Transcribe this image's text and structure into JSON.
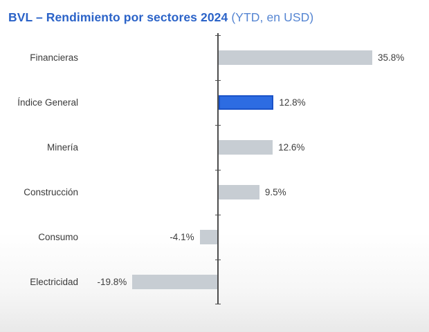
{
  "title": {
    "main": "BVL – Rendimiento por sectores 2024",
    "suffix": "(YTD, en USD)"
  },
  "colors": {
    "title_main": "#2b63c8",
    "title_suffix": "#5585d2",
    "bar_default": "#c7cdd3",
    "bar_highlight_fill": "#2d6ce2",
    "bar_highlight_border": "#1a52c8",
    "axis": "#4d4d4d",
    "category_label_text": "#3a3a3a",
    "value_label_text": "#3d3d3d"
  },
  "chart_data": {
    "type": "bar",
    "orientation": "horizontal",
    "title": "BVL – Rendimiento por sectores 2024 (YTD, en USD)",
    "xlabel": "",
    "ylabel": "",
    "categories": [
      "Financieras",
      "Índice General",
      "Minería",
      "Construcción",
      "Consumo",
      "Electricidad"
    ],
    "values": [
      35.8,
      12.8,
      12.6,
      9.5,
      -4.1,
      -19.8
    ],
    "value_labels": [
      "35.8%",
      "12.8%",
      "12.6%",
      "9.5%",
      "-4.1%",
      "-19.8%"
    ],
    "value_suffix": "%",
    "highlight_index": 1,
    "highlight_category": "Índice General",
    "xlim": [
      -25,
      40
    ],
    "grid": false,
    "legend": null
  }
}
